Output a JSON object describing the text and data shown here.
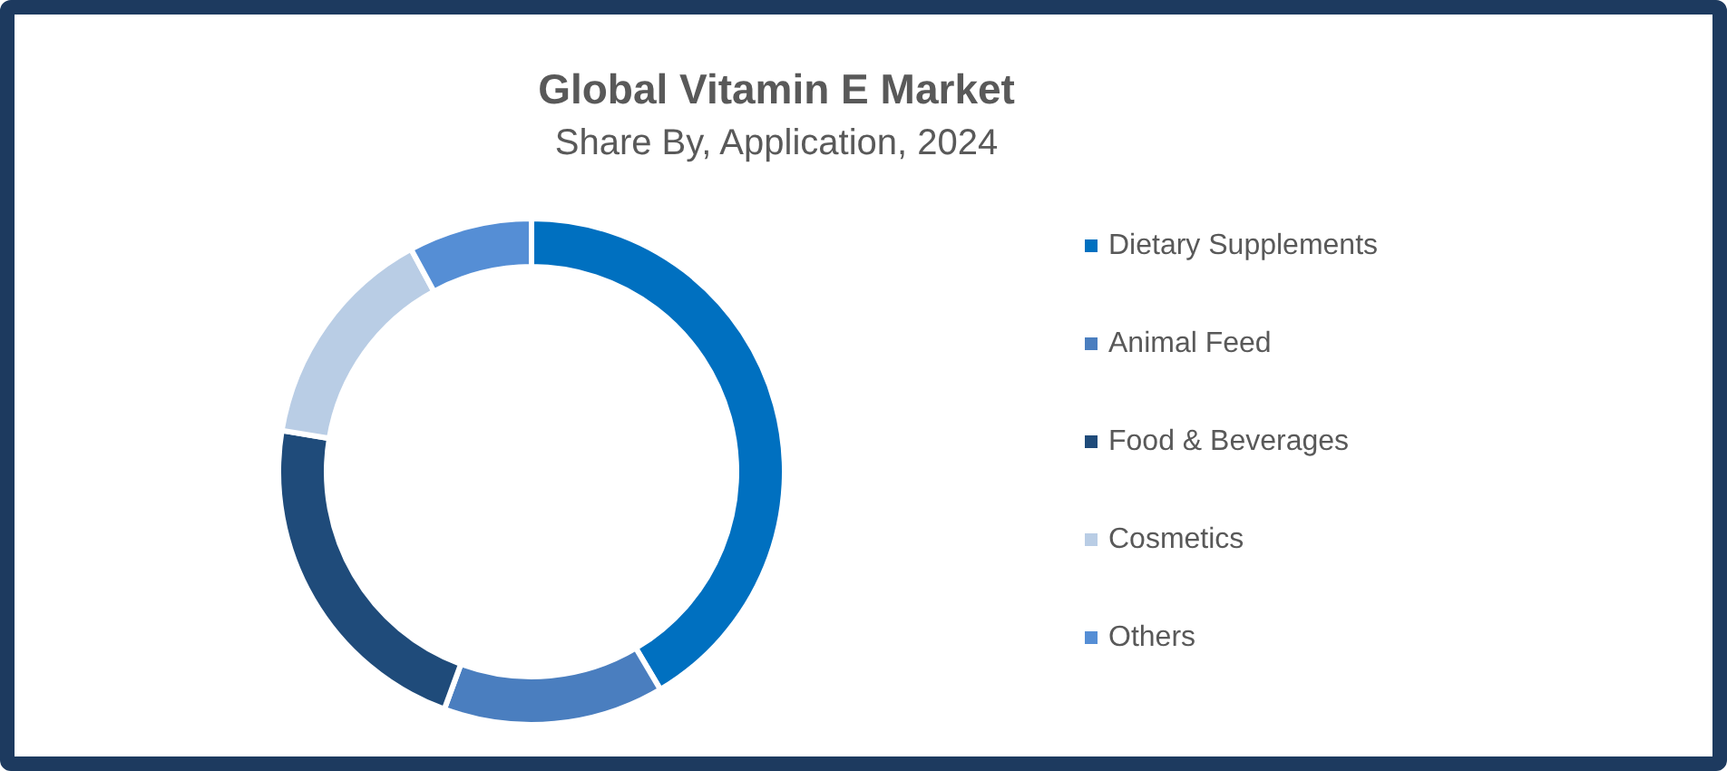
{
  "chart_data": {
    "type": "donut",
    "title": "Global Vitamin E Market",
    "subtitle": "Share By, Application, 2024",
    "categories": [
      "Dietary Supplements",
      "Animal Feed",
      "Food & Beverages",
      "Cosmetics",
      "Others"
    ],
    "values": [
      41.5,
      14.1,
      22,
      14.5,
      7.9
    ],
    "colors": [
      "#0070c0",
      "#4a7ebf",
      "#1f4b7a",
      "#b9cde5",
      "#558ed5"
    ],
    "legend": "right"
  }
}
